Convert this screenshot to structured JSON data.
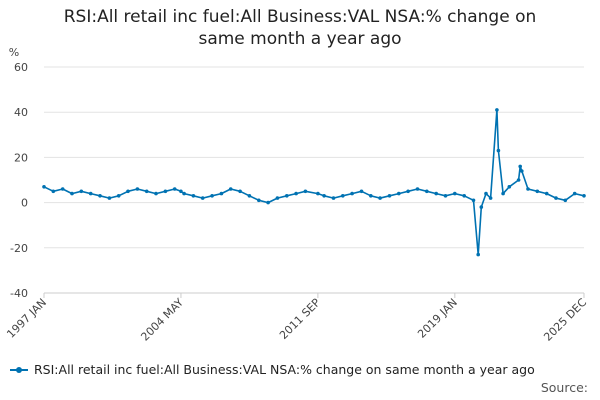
{
  "chart_data": {
    "type": "line",
    "title": "RSI:All retail inc fuel:All Business:VAL NSA:% change on same month a year ago",
    "ylabel": "%",
    "xlabel": "",
    "ylim": [
      -40,
      60
    ],
    "yticks": [
      "60",
      "40",
      "20",
      "0",
      "-20",
      "-40"
    ],
    "xticks": [
      "1997 JAN",
      "2004 MAY",
      "2011 SEP",
      "2019 JAN",
      "2025 DEC"
    ],
    "xrange": [
      "1997 JAN",
      "2025 DEC"
    ],
    "grid": true,
    "legend_position": "bottom-left",
    "color": "#0072b2",
    "series": [
      {
        "name": "RSI:All retail inc fuel:All Business:VAL NSA:% change on same month a year ago",
        "points": [
          [
            "1997 JAN",
            7
          ],
          [
            "1997 JUL",
            5
          ],
          [
            "1998 JAN",
            6
          ],
          [
            "1998 JUL",
            4
          ],
          [
            "1999 JAN",
            5
          ],
          [
            "1999 JUL",
            4
          ],
          [
            "2000 JAN",
            3
          ],
          [
            "2000 JUL",
            2
          ],
          [
            "2001 JAN",
            3
          ],
          [
            "2001 JUL",
            5
          ],
          [
            "2002 JAN",
            6
          ],
          [
            "2002 JUL",
            5
          ],
          [
            "2003 JAN",
            4
          ],
          [
            "2003 JUL",
            5
          ],
          [
            "2004 JAN",
            6
          ],
          [
            "2004 MAY",
            5
          ],
          [
            "2004 JUL",
            4
          ],
          [
            "2005 JAN",
            3
          ],
          [
            "2005 JUL",
            2
          ],
          [
            "2006 JAN",
            3
          ],
          [
            "2006 JUL",
            4
          ],
          [
            "2007 JAN",
            6
          ],
          [
            "2007 JUL",
            5
          ],
          [
            "2008 JAN",
            3
          ],
          [
            "2008 JUL",
            1
          ],
          [
            "2009 JAN",
            0
          ],
          [
            "2009 JUL",
            2
          ],
          [
            "2010 JAN",
            3
          ],
          [
            "2010 JUL",
            4
          ],
          [
            "2011 JAN",
            5
          ],
          [
            "2011 SEP",
            4
          ],
          [
            "2012 JAN",
            3
          ],
          [
            "2012 JUL",
            2
          ],
          [
            "2013 JAN",
            3
          ],
          [
            "2013 JUL",
            4
          ],
          [
            "2014 JAN",
            5
          ],
          [
            "2014 JUL",
            3
          ],
          [
            "2015 JAN",
            2
          ],
          [
            "2015 JUL",
            3
          ],
          [
            "2016 JAN",
            4
          ],
          [
            "2016 JUL",
            5
          ],
          [
            "2017 JAN",
            6
          ],
          [
            "2017 JUL",
            5
          ],
          [
            "2018 JAN",
            4
          ],
          [
            "2018 JUL",
            3
          ],
          [
            "2019 JAN",
            4
          ],
          [
            "2019 JUL",
            3
          ],
          [
            "2020 JAN",
            1
          ],
          [
            "2020 APR",
            -23
          ],
          [
            "2020 JUN",
            -2
          ],
          [
            "2020 SEP",
            4
          ],
          [
            "2020 DEC",
            2
          ],
          [
            "2021 APR",
            41
          ],
          [
            "2021 MAY",
            23
          ],
          [
            "2021 AUG",
            4
          ],
          [
            "2021 DEC",
            7
          ],
          [
            "2022 JUN",
            10
          ],
          [
            "2022 JUL",
            16
          ],
          [
            "2022 AUG",
            14
          ],
          [
            "2022 DEC",
            6
          ],
          [
            "2023 JUN",
            5
          ],
          [
            "2023 DEC",
            4
          ],
          [
            "2024 JUN",
            2
          ],
          [
            "2024 DEC",
            1
          ],
          [
            "2025 JUN",
            4
          ],
          [
            "2025 DEC",
            3
          ]
        ]
      }
    ]
  },
  "legend": {
    "label": "RSI:All retail inc fuel:All Business:VAL NSA:% change on same month a year ago"
  },
  "source_label": "Source:"
}
